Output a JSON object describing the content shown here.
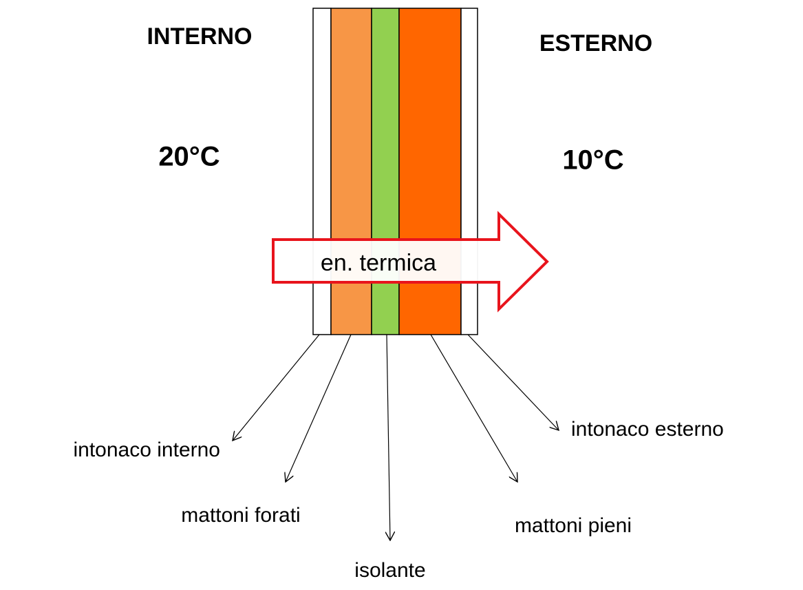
{
  "sides": {
    "inside": {
      "label": "INTERNO",
      "temperature": "20°C"
    },
    "outside": {
      "label": "ESTERNO",
      "temperature": "10°C"
    }
  },
  "arrow": {
    "label": "en. termica"
  },
  "layers": [
    {
      "label": "intonaco interno",
      "color": "#ffffff"
    },
    {
      "label": "mattoni forati",
      "color": "#f79646"
    },
    {
      "label": "isolante",
      "color": "#92d050"
    },
    {
      "label": "mattoni pieni",
      "color": "#ff6600"
    },
    {
      "label": "intonaco esterno",
      "color": "#ffffff"
    }
  ]
}
